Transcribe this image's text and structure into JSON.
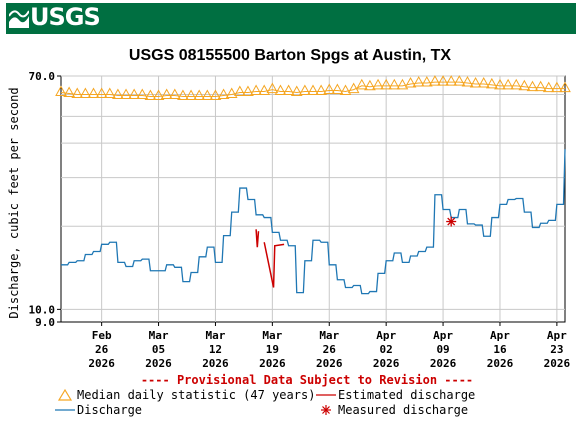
{
  "header": {
    "logo_text": "USGS",
    "logo_color": "#006f41"
  },
  "chart_data": {
    "type": "line",
    "title": "USGS 08155500 Barton Spgs at Austin, TX",
    "ylabel": "Discharge, cubic feet per second",
    "xlabel": "",
    "y_scale": "log",
    "ylim": [
      9.0,
      70.0
    ],
    "y_tick_labels": [
      "70.0",
      "10.0",
      "9.0"
    ],
    "y_tick_values": [
      70,
      10,
      9
    ],
    "x_tick_labels": [
      [
        "Feb",
        "26",
        "2026"
      ],
      [
        "Mar",
        "05",
        "2026"
      ],
      [
        "Mar",
        "12",
        "2026"
      ],
      [
        "Mar",
        "19",
        "2026"
      ],
      [
        "Mar",
        "26",
        "2026"
      ],
      [
        "Apr",
        "02",
        "2026"
      ],
      [
        "Apr",
        "09",
        "2026"
      ],
      [
        "Apr",
        "16",
        "2026"
      ],
      [
        "Apr",
        "23",
        "2026"
      ]
    ],
    "x_tick_dates": [
      "2026-02-26",
      "2026-03-05",
      "2026-03-12",
      "2026-03-19",
      "2026-03-26",
      "2026-04-02",
      "2026-04-09",
      "2026-04-16",
      "2026-04-23"
    ],
    "xlim": [
      "2026-02-21",
      "2026-04-24"
    ],
    "grid": true,
    "provisional_note": "---- Provisional Data Subject to Revision ----",
    "series": [
      {
        "name": "Median daily statistic (47 years)",
        "marker": "triangle",
        "color": "#f5a623",
        "x": [
          "2026-02-21",
          "2026-02-22",
          "2026-02-23",
          "2026-02-24",
          "2026-02-25",
          "2026-02-26",
          "2026-02-27",
          "2026-02-28",
          "2026-03-01",
          "2026-03-02",
          "2026-03-03",
          "2026-03-04",
          "2026-03-05",
          "2026-03-06",
          "2026-03-07",
          "2026-03-08",
          "2026-03-09",
          "2026-03-10",
          "2026-03-11",
          "2026-03-12",
          "2026-03-13",
          "2026-03-14",
          "2026-03-15",
          "2026-03-16",
          "2026-03-17",
          "2026-03-18",
          "2026-03-19",
          "2026-03-20",
          "2026-03-21",
          "2026-03-22",
          "2026-03-23",
          "2026-03-24",
          "2026-03-25",
          "2026-03-26",
          "2026-03-27",
          "2026-03-28",
          "2026-03-29",
          "2026-03-30",
          "2026-03-31",
          "2026-04-01",
          "2026-04-02",
          "2026-04-03",
          "2026-04-04",
          "2026-04-05",
          "2026-04-06",
          "2026-04-07",
          "2026-04-08",
          "2026-04-09",
          "2026-04-10",
          "2026-04-11",
          "2026-04-12",
          "2026-04-13",
          "2026-04-14",
          "2026-04-15",
          "2026-04-16",
          "2026-04-17",
          "2026-04-18",
          "2026-04-19",
          "2026-04-20",
          "2026-04-21",
          "2026-04-22",
          "2026-04-23",
          "2026-04-24"
        ],
        "values": [
          61,
          60.5,
          60,
          60,
          60,
          60,
          60,
          59.5,
          59.5,
          59.5,
          59.5,
          59,
          59,
          59.5,
          59.5,
          59,
          59,
          59,
          59,
          59,
          59.5,
          60,
          61,
          61,
          61.5,
          61.5,
          62.5,
          61.5,
          61.5,
          61,
          61.5,
          61.5,
          61.5,
          62,
          62,
          61.5,
          62.5,
          64.5,
          64,
          64.5,
          64.5,
          64.5,
          64.5,
          65.5,
          66,
          66,
          66.5,
          66.5,
          66.5,
          66.5,
          66,
          65.5,
          65.5,
          65,
          64.5,
          64.5,
          64.5,
          64,
          63.5,
          63.5,
          63,
          63,
          63
        ]
      },
      {
        "name": "Estimated discharge",
        "marker": "line",
        "color": "#cc0000",
        "segments": [
          {
            "x": [
              "2026-03-17",
              "2026-03-17",
              "2026-03-17"
            ],
            "values": [
              19.5,
              16.8,
              19.2
            ]
          },
          {
            "x": [
              "2026-03-18",
              "2026-03-19",
              "2026-03-19",
              "2026-03-20"
            ],
            "values": [
              17.5,
              12.0,
              17.0,
              17.2
            ]
          }
        ]
      },
      {
        "name": "Discharge",
        "marker": "line",
        "color": "#1f77b4",
        "x": [
          "2026-02-21",
          "2026-02-22",
          "2026-02-23",
          "2026-02-24",
          "2026-02-25",
          "2026-02-26",
          "2026-02-27",
          "2026-02-28",
          "2026-03-01",
          "2026-03-02",
          "2026-03-03",
          "2026-03-04",
          "2026-03-05",
          "2026-03-06",
          "2026-03-07",
          "2026-03-08",
          "2026-03-09",
          "2026-03-10",
          "2026-03-11",
          "2026-03-12",
          "2026-03-13",
          "2026-03-14",
          "2026-03-15",
          "2026-03-16",
          "2026-03-17",
          "2026-03-18",
          "2026-03-19",
          "2026-03-20",
          "2026-03-21",
          "2026-03-22",
          "2026-03-23",
          "2026-03-24",
          "2026-03-25",
          "2026-03-26",
          "2026-03-27",
          "2026-03-28",
          "2026-03-29",
          "2026-03-30",
          "2026-03-31",
          "2026-04-01",
          "2026-04-02",
          "2026-04-03",
          "2026-04-04",
          "2026-04-05",
          "2026-04-06",
          "2026-04-07",
          "2026-04-08",
          "2026-04-09",
          "2026-04-10",
          "2026-04-11",
          "2026-04-12",
          "2026-04-13",
          "2026-04-14",
          "2026-04-15",
          "2026-04-16",
          "2026-04-17",
          "2026-04-18",
          "2026-04-19",
          "2026-04-20",
          "2026-04-21",
          "2026-04-22",
          "2026-04-23",
          "2026-04-24"
        ],
        "values": [
          14.5,
          14.8,
          15.0,
          15.8,
          16.2,
          17.2,
          17.5,
          14.8,
          14.3,
          15.0,
          15.2,
          13.8,
          13.8,
          14.5,
          14.2,
          12.6,
          13.6,
          15.5,
          16.8,
          14.8,
          18.5,
          22.5,
          27.5,
          25.0,
          22.0,
          21.5,
          19.0,
          17.8,
          17.0,
          11.5,
          15.0,
          17.8,
          17.5,
          14.5,
          12.8,
          12.0,
          12.2,
          11.4,
          11.6,
          13.5,
          15.0,
          16.0,
          14.8,
          15.6,
          16.2,
          16.8,
          26.0,
          23.0,
          21.5,
          23.0,
          20.4,
          20.2,
          18.4,
          21.5,
          24.0,
          25.0,
          25.2,
          22.5,
          19.8,
          20.5,
          21.0,
          24.0,
          38.0
        ]
      },
      {
        "name": "Measured discharge",
        "marker": "asterisk",
        "color": "#cc0000",
        "x": [
          "2026-04-10"
        ],
        "values": [
          20.8
        ]
      }
    ],
    "legend": {
      "position": "bottom",
      "entries": [
        "Median daily statistic (47 years)",
        "Estimated discharge",
        "Discharge",
        "Measured discharge"
      ]
    }
  }
}
